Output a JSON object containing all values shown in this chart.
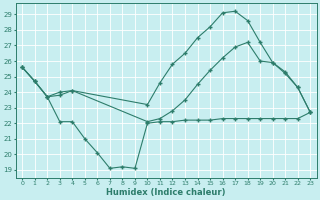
{
  "line1_x": [
    0,
    1,
    2,
    3,
    4,
    10,
    11,
    12,
    13,
    14,
    15,
    16,
    17,
    18,
    19,
    20,
    21,
    22,
    23
  ],
  "line1_y": [
    25.6,
    24.7,
    23.7,
    23.8,
    24.1,
    23.2,
    24.6,
    25.8,
    26.5,
    27.5,
    28.2,
    29.1,
    29.2,
    28.6,
    27.2,
    25.9,
    25.2,
    24.3,
    22.7
  ],
  "line2_x": [
    0,
    1,
    2,
    3,
    4,
    10,
    11,
    12,
    13,
    14,
    15,
    16,
    17,
    18,
    19,
    20,
    21,
    22,
    23
  ],
  "line2_y": [
    25.6,
    24.7,
    23.7,
    24.0,
    24.1,
    22.1,
    22.3,
    22.8,
    23.5,
    24.5,
    25.4,
    26.2,
    26.9,
    27.2,
    26.0,
    25.9,
    25.3,
    24.3,
    22.7
  ],
  "line3_x": [
    0,
    1,
    2,
    3,
    4,
    5,
    6,
    7,
    8,
    9,
    10,
    11,
    12,
    13,
    14,
    15,
    16,
    17,
    18,
    19,
    20,
    21,
    22,
    23
  ],
  "line3_y": [
    25.6,
    24.7,
    23.7,
    22.1,
    22.1,
    21.0,
    20.1,
    19.1,
    19.2,
    19.1,
    22.0,
    22.1,
    22.1,
    22.2,
    22.2,
    22.2,
    22.3,
    22.3,
    22.3,
    22.3,
    22.3,
    22.3,
    22.3,
    22.7
  ],
  "color": "#2d7d6b",
  "bg_color": "#c8eef0",
  "grid_color": "#ffffff",
  "ylabel_ticks": [
    19,
    20,
    21,
    22,
    23,
    24,
    25,
    26,
    27,
    28,
    29
  ],
  "xlabel": "Humidex (Indice chaleur)",
  "xticks": [
    0,
    1,
    2,
    3,
    4,
    5,
    6,
    7,
    8,
    9,
    10,
    11,
    12,
    13,
    14,
    15,
    16,
    17,
    18,
    19,
    20,
    21,
    22,
    23
  ],
  "ylim": [
    18.5,
    29.7
  ],
  "xlim": [
    -0.5,
    23.5
  ]
}
